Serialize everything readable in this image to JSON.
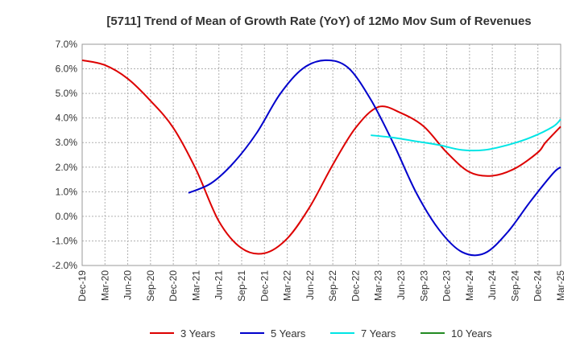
{
  "chart_data": {
    "type": "line",
    "title": "[5711]  Trend of Mean of Growth Rate (YoY) of 12Mo Mov Sum of Revenues",
    "xlabel": "",
    "ylabel": "",
    "ylim": [
      -2.0,
      7.0
    ],
    "yticks": [
      -2.0,
      -1.0,
      0.0,
      1.0,
      2.0,
      3.0,
      4.0,
      5.0,
      6.0,
      7.0
    ],
    "ytick_labels": [
      "-2.0%",
      "-1.0%",
      "0.0%",
      "1.0%",
      "2.0%",
      "3.0%",
      "4.0%",
      "5.0%",
      "6.0%",
      "7.0%"
    ],
    "xtick_labels": [
      "Dec-19",
      "Mar-20",
      "Jun-20",
      "Sep-20",
      "Dec-20",
      "Mar-21",
      "Jun-21",
      "Sep-21",
      "Dec-21",
      "Mar-22",
      "Jun-22",
      "Sep-22",
      "Dec-22",
      "Mar-23",
      "Jun-23",
      "Sep-23",
      "Dec-23",
      "Mar-24",
      "Jun-24",
      "Sep-24",
      "Dec-24",
      "Mar-25"
    ],
    "x_unit": "month index from Dec-19",
    "x_range": [
      0,
      63
    ],
    "grid": true,
    "legend_position": "bottom",
    "series": [
      {
        "name": "3 Years",
        "color": "#dd0000",
        "x": [
          0,
          3,
          6,
          9,
          12,
          15,
          18,
          21,
          24,
          27,
          30,
          33,
          36,
          39,
          42,
          45,
          48,
          51,
          54,
          57,
          60
        ],
        "values": [
          6.35,
          6.15,
          5.6,
          4.7,
          3.6,
          1.9,
          -0.2,
          -1.3,
          -1.5,
          -0.9,
          0.4,
          2.1,
          3.6,
          4.45,
          4.2,
          3.65,
          2.6,
          1.8,
          1.65,
          1.95,
          2.6
        ]
      },
      {
        "name": "3 Years (cont.)",
        "color": "#dd0000",
        "x": [
          61,
          63
        ],
        "values": [
          3.0,
          3.65
        ]
      },
      {
        "name": "5 Years",
        "color": "#0000cc",
        "x": [
          14,
          17,
          20,
          23,
          26,
          29,
          32,
          35,
          38,
          41,
          44,
          47,
          50,
          53,
          56,
          59,
          62,
          63
        ],
        "values": [
          0.95,
          1.35,
          2.2,
          3.4,
          4.95,
          6.0,
          6.35,
          6.05,
          4.75,
          2.95,
          0.95,
          -0.55,
          -1.45,
          -1.5,
          -0.65,
          0.6,
          1.75,
          2.0
        ]
      },
      {
        "name": "7 Years",
        "color": "#00e5e5",
        "x": [
          38,
          41,
          44,
          47,
          50,
          53,
          56,
          59,
          62,
          63
        ],
        "values": [
          3.3,
          3.2,
          3.05,
          2.9,
          2.7,
          2.7,
          2.9,
          3.2,
          3.65,
          3.95
        ]
      },
      {
        "name": "10 Years",
        "color": "#228b22",
        "x": [],
        "values": []
      }
    ],
    "legend": [
      {
        "label": "3 Years",
        "color": "#dd0000"
      },
      {
        "label": "5 Years",
        "color": "#0000cc"
      },
      {
        "label": "7 Years",
        "color": "#00e5e5"
      },
      {
        "label": "10 Years",
        "color": "#228b22"
      }
    ]
  }
}
